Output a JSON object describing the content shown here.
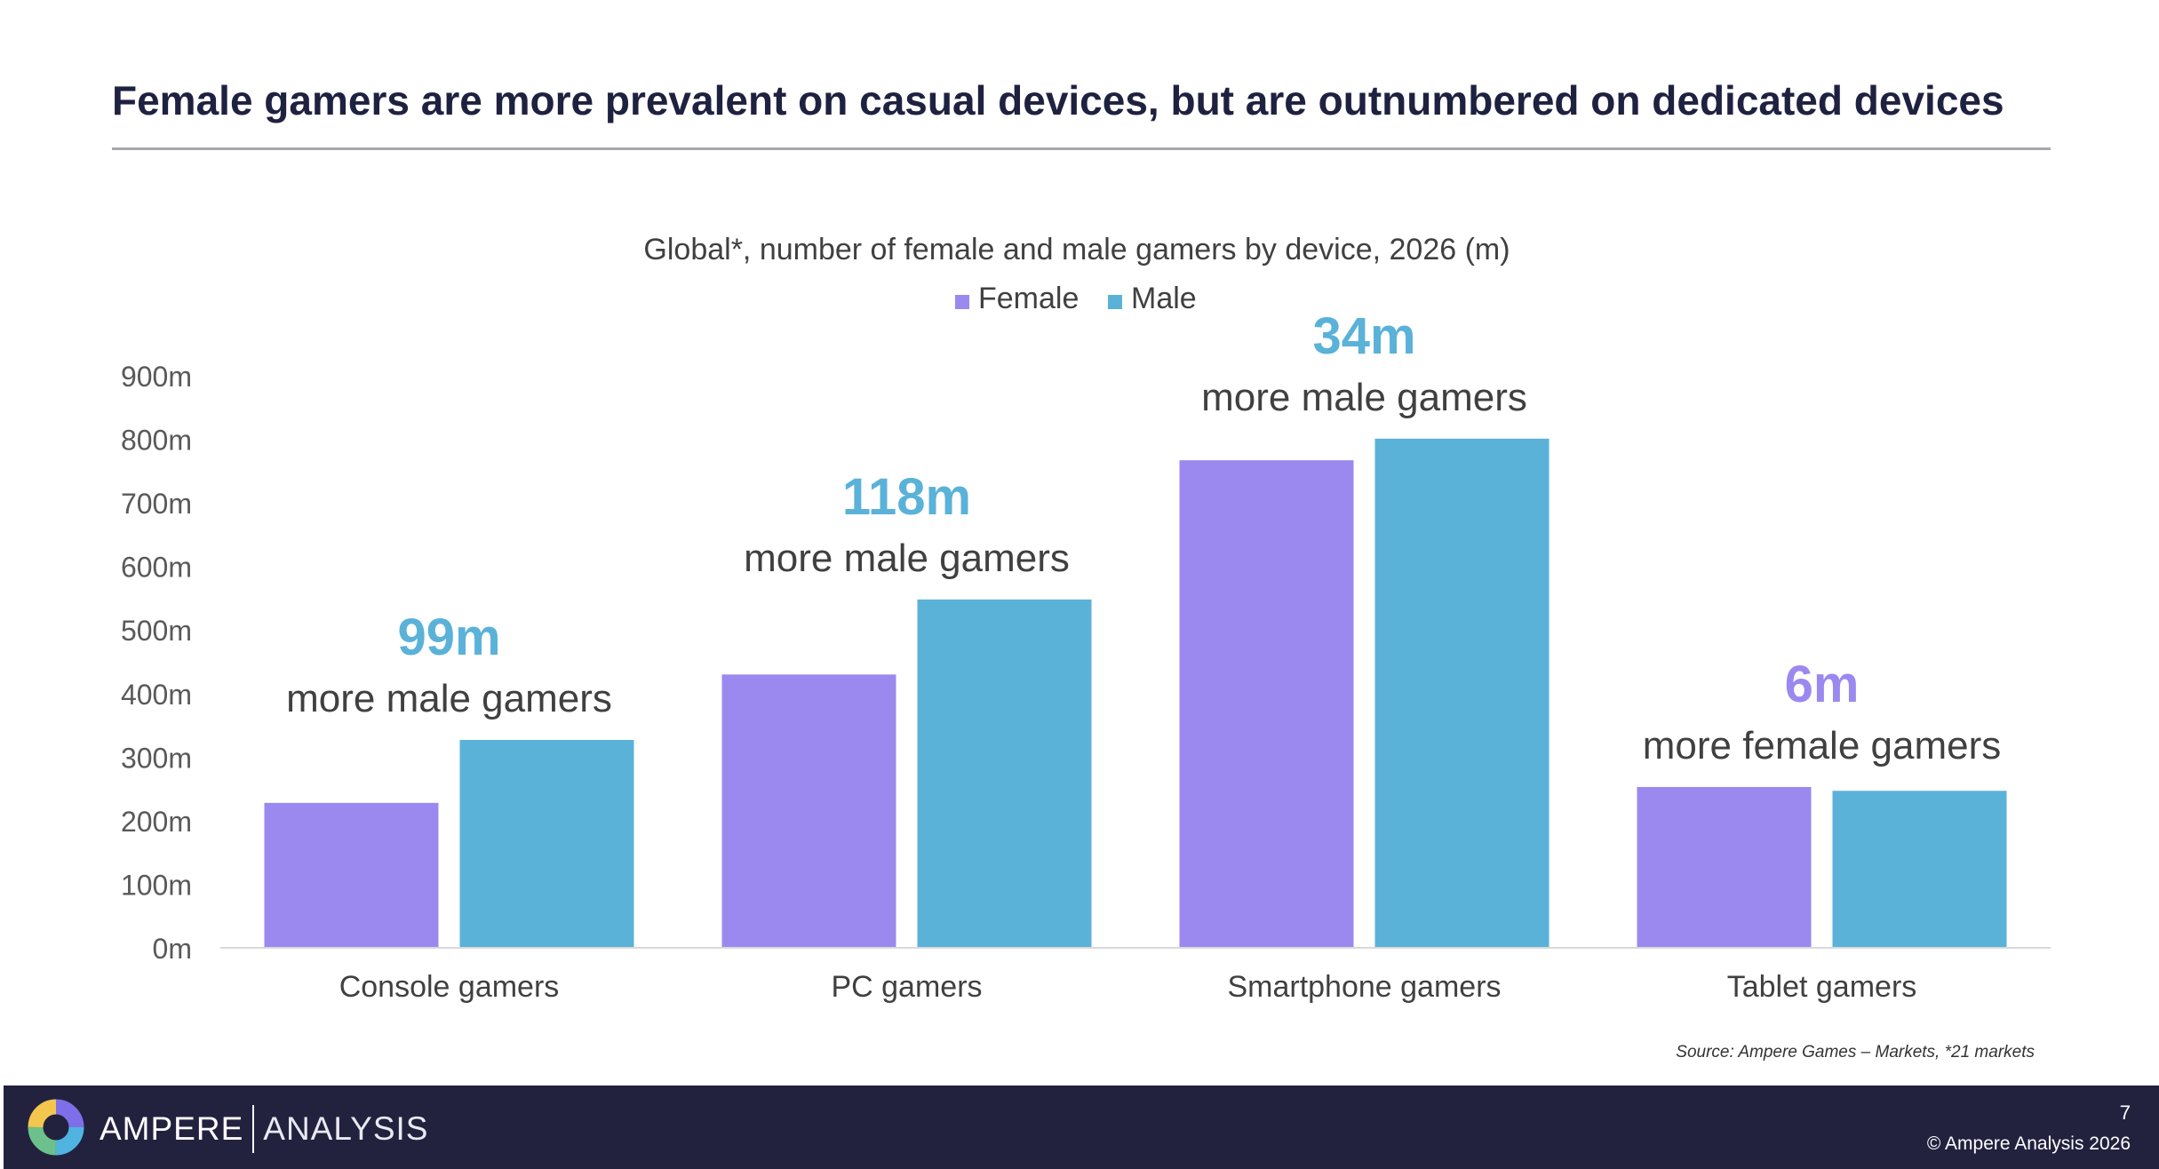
{
  "slide": {
    "title": "Female gamers are more prevalent on casual devices, but are outnumbered on dedicated devices",
    "source": "Source: Ampere Games – Markets, *21 markets"
  },
  "chart_data": {
    "type": "bar",
    "title": "Global*, number of female and male gamers by device, 2026 (m)",
    "categories": [
      "Console gamers",
      "PC gamers",
      "Smartphone gamers",
      "Tablet gamers"
    ],
    "series": [
      {
        "name": "Female",
        "color": "#9b89f0",
        "values": [
          228,
          430,
          767,
          253
        ]
      },
      {
        "name": "Male",
        "color": "#5ab2d9",
        "values": [
          327,
          548,
          801,
          247
        ]
      }
    ],
    "ylim": [
      0,
      900
    ],
    "yticks": [
      0,
      100,
      200,
      300,
      400,
      500,
      600,
      700,
      800,
      900
    ],
    "ytick_labels": [
      "0m",
      "100m",
      "200m",
      "300m",
      "400m",
      "500m",
      "600m",
      "700m",
      "800m",
      "900m"
    ],
    "legend": "top",
    "grid": false,
    "annotations": [
      {
        "category": "Console gamers",
        "value": "99m",
        "text": "more male gamers",
        "color": "#5ab2d9"
      },
      {
        "category": "PC gamers",
        "value": "118m",
        "text": "more male gamers",
        "color": "#5ab2d9"
      },
      {
        "category": "Smartphone gamers",
        "value": "34m",
        "text": "more male gamers",
        "color": "#5ab2d9"
      },
      {
        "category": "Tablet gamers",
        "value": "6m",
        "text": "more female gamers",
        "color": "#9b89f0"
      }
    ]
  },
  "footer": {
    "brand_primary": "AMPERE",
    "brand_secondary": "ANALYSIS",
    "page_number": "7",
    "copyright": "© Ampere Analysis 2026",
    "background_color": "#22223f",
    "logo_icon": "ampere-ring-logo-icon"
  }
}
